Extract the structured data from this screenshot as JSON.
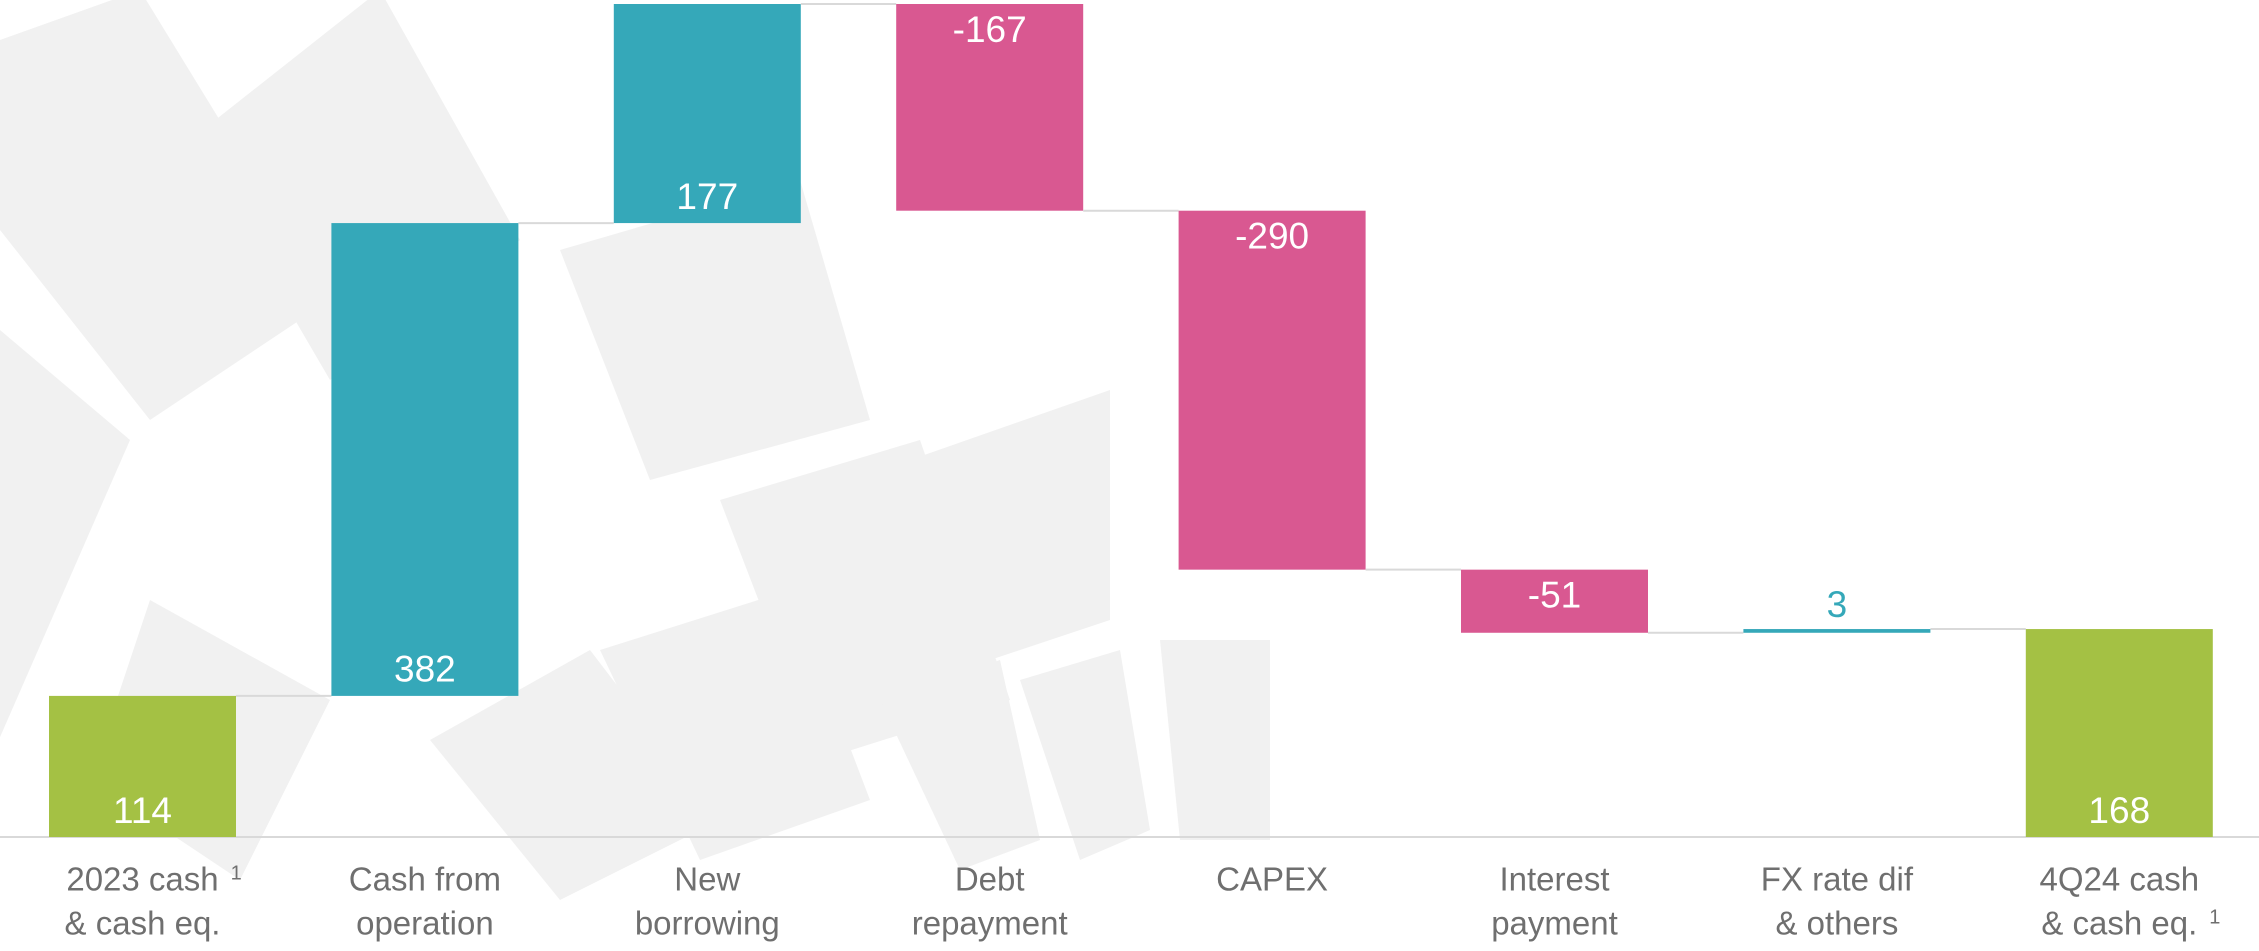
{
  "chart_data": {
    "type": "waterfall",
    "categories": [
      [
        "2023 cash",
        "& cash eq."
      ],
      [
        "Cash from",
        "operation"
      ],
      [
        "New",
        "borrowing"
      ],
      [
        "Debt",
        "repayment"
      ],
      [
        "CAPEX"
      ],
      [
        "Interest",
        "payment"
      ],
      [
        "FX rate dif",
        "& others"
      ],
      [
        "4Q24 cash",
        "& cash eq."
      ]
    ],
    "category_notes": [
      {
        "line": 0,
        "text": "1"
      },
      null,
      null,
      null,
      null,
      null,
      null,
      {
        "line": 1,
        "text": "1"
      }
    ],
    "values": [
      114,
      382,
      177,
      -167,
      -290,
      -51,
      3,
      168
    ],
    "totals": [
      true,
      false,
      false,
      false,
      false,
      false,
      false,
      true
    ],
    "colors": {
      "total": "#a4c144",
      "increase": "#35a8b9",
      "decrease": "#d95891"
    }
  }
}
